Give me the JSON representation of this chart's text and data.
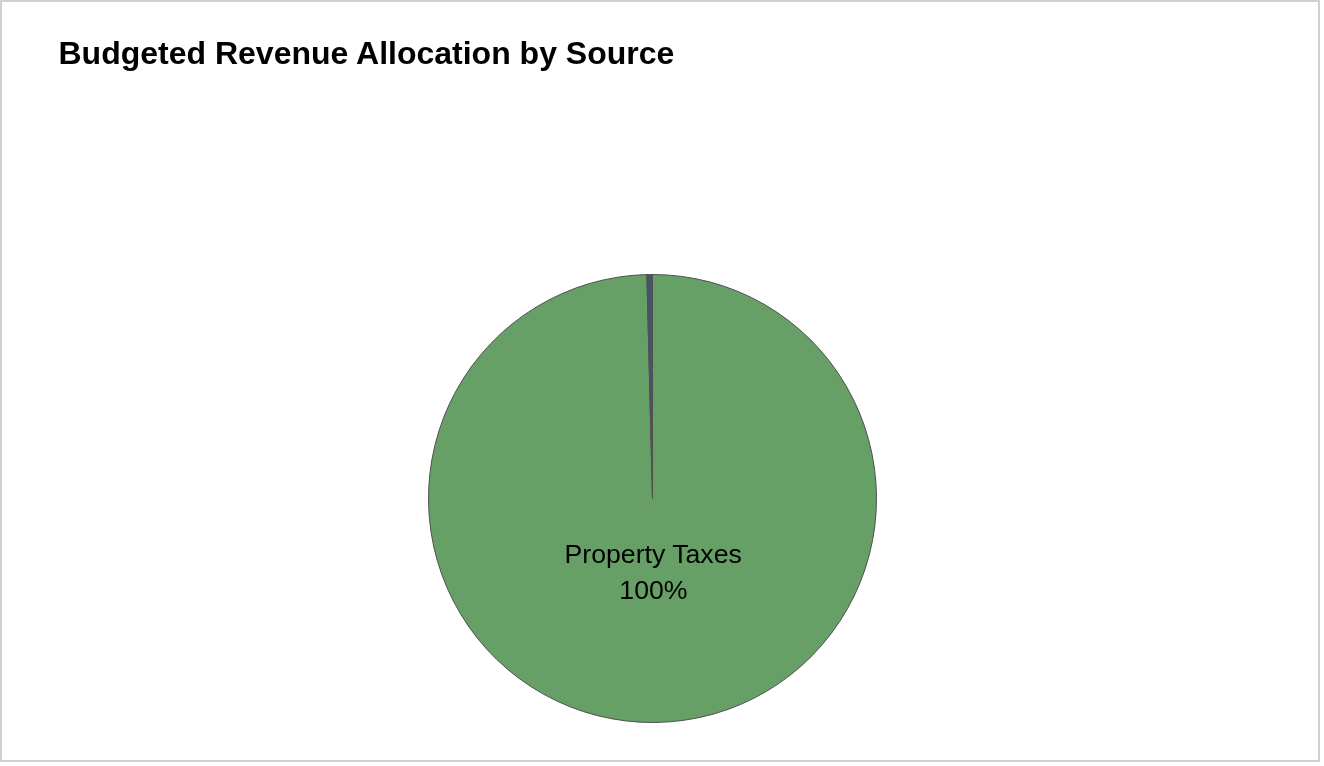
{
  "chart_data": {
    "type": "pie",
    "title": "Budgeted Revenue Allocation by Source",
    "categories": [
      "Property Taxes",
      null
    ],
    "values": [
      99.6,
      0.4
    ],
    "colors": [
      "#66a066",
      "#44546a"
    ],
    "value_labels": [
      "100%",
      null
    ]
  }
}
